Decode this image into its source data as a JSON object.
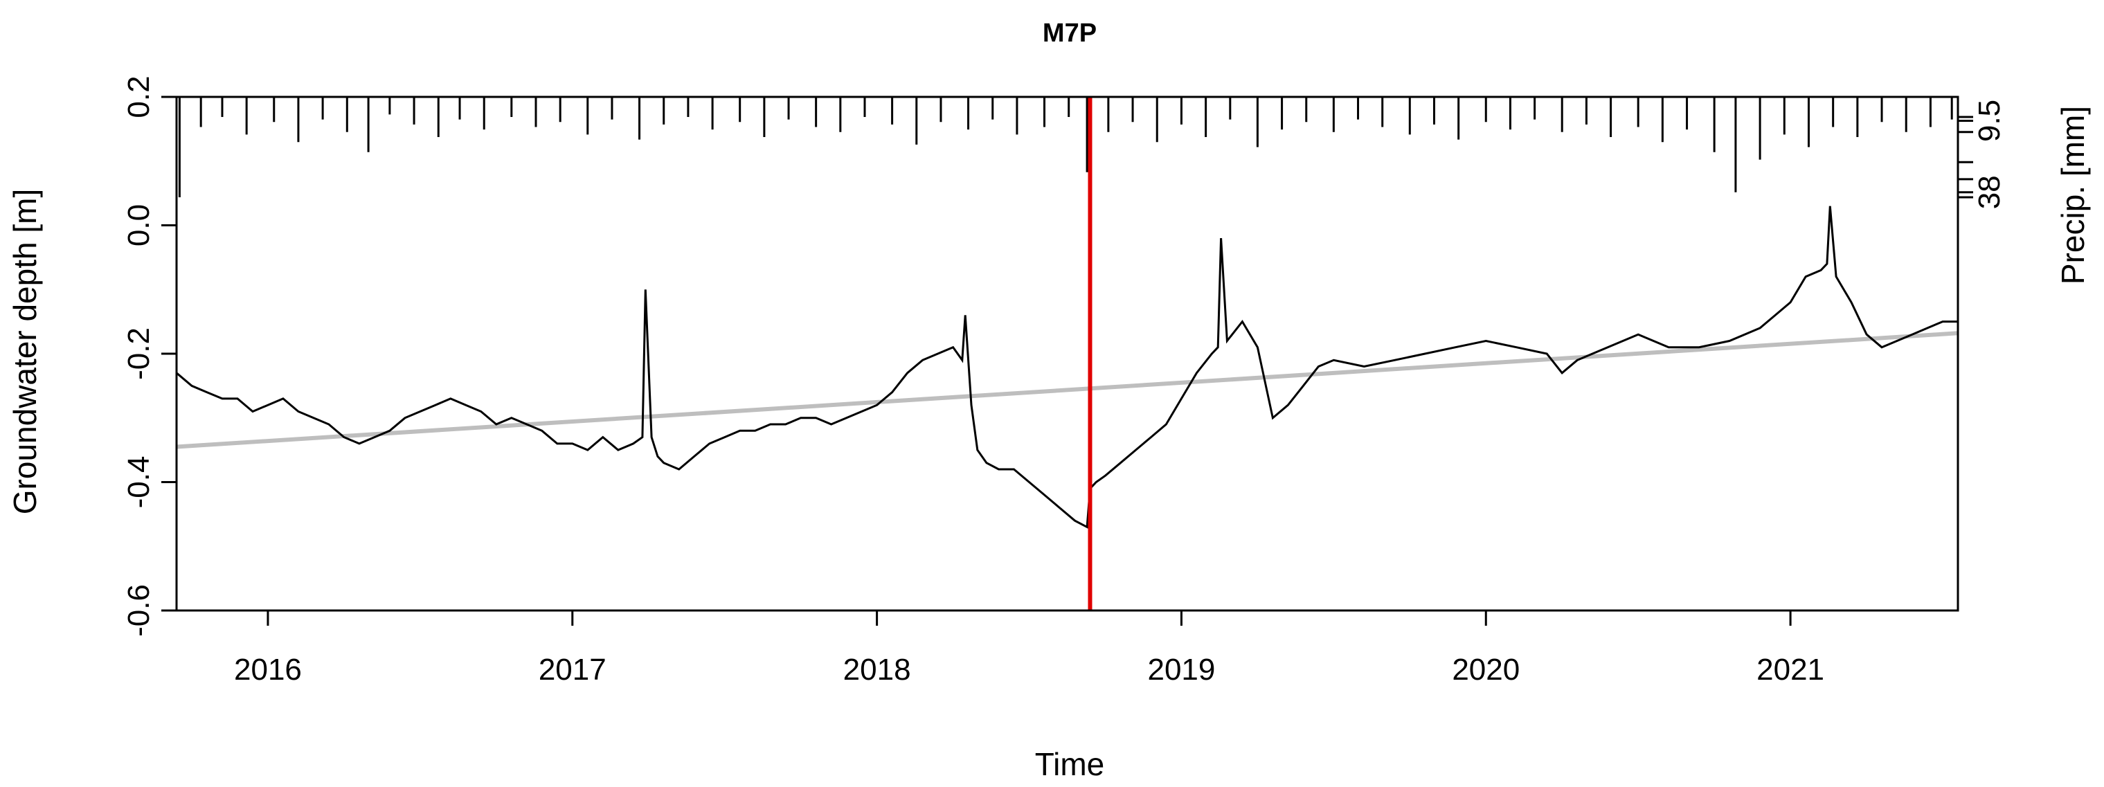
{
  "chart_data": {
    "type": "line",
    "title": "M7P",
    "xlabel": "Time",
    "ylabel": "Groundwater depth [m]",
    "ylabel_right": "Precip. [mm]",
    "xlim": [
      2015.7,
      2021.55
    ],
    "ylim": [
      -0.6,
      0.2
    ],
    "x_ticks": [
      "2016",
      "2017",
      "2018",
      "2019",
      "2020",
      "2021"
    ],
    "y_ticks": [
      "0.2",
      "0.0",
      "-0.2",
      "-0.4",
      "-0.6"
    ],
    "y2_ticks": [
      "9.5",
      "38"
    ],
    "grid": false,
    "legend": "none",
    "colors": {
      "groundwater": "#000000",
      "trend": "#bebebe",
      "marker": "#e00000",
      "precip": "#000000"
    },
    "vertical_marker_x": 2018.7,
    "series": [
      {
        "key": "groundwater",
        "x": [
          2015.7,
          2015.75,
          2015.8,
          2015.85,
          2015.9,
          2015.95,
          2016.0,
          2016.05,
          2016.1,
          2016.15,
          2016.2,
          2016.25,
          2016.3,
          2016.35,
          2016.4,
          2016.45,
          2016.5,
          2016.55,
          2016.6,
          2016.65,
          2016.7,
          2016.75,
          2016.8,
          2016.85,
          2016.9,
          2016.95,
          2017.0,
          2017.05,
          2017.1,
          2017.15,
          2017.2,
          2017.23,
          2017.24,
          2017.26,
          2017.28,
          2017.3,
          2017.35,
          2017.4,
          2017.45,
          2017.5,
          2017.55,
          2017.6,
          2017.65,
          2017.7,
          2017.75,
          2017.8,
          2017.85,
          2017.9,
          2017.95,
          2018.0,
          2018.05,
          2018.1,
          2018.15,
          2018.2,
          2018.25,
          2018.28,
          2018.29,
          2018.31,
          2018.33,
          2018.36,
          2018.4,
          2018.45,
          2018.5,
          2018.55,
          2018.6,
          2018.65,
          2018.69,
          2018.7,
          2018.72,
          2018.75,
          2018.8,
          2018.85,
          2018.9,
          2018.95,
          2019.0,
          2019.05,
          2019.1,
          2019.12,
          2019.13,
          2019.15,
          2019.2,
          2019.25,
          2019.3,
          2019.35,
          2019.4,
          2019.45,
          2019.5,
          2019.6,
          2019.7,
          2019.8,
          2019.9,
          2020.0,
          2020.1,
          2020.2,
          2020.25,
          2020.3,
          2020.4,
          2020.5,
          2020.6,
          2020.7,
          2020.8,
          2020.9,
          2020.95,
          2021.0,
          2021.05,
          2021.1,
          2021.12,
          2021.13,
          2021.15,
          2021.2,
          2021.25,
          2021.3,
          2021.35,
          2021.4,
          2021.45,
          2021.5,
          2021.55
        ],
        "values": [
          -0.23,
          -0.25,
          -0.26,
          -0.27,
          -0.27,
          -0.29,
          -0.28,
          -0.27,
          -0.29,
          -0.3,
          -0.31,
          -0.33,
          -0.34,
          -0.33,
          -0.32,
          -0.3,
          -0.29,
          -0.28,
          -0.27,
          -0.28,
          -0.29,
          -0.31,
          -0.3,
          -0.31,
          -0.32,
          -0.34,
          -0.34,
          -0.35,
          -0.33,
          -0.35,
          -0.34,
          -0.33,
          -0.1,
          -0.33,
          -0.36,
          -0.37,
          -0.38,
          -0.36,
          -0.34,
          -0.33,
          -0.32,
          -0.32,
          -0.31,
          -0.31,
          -0.3,
          -0.3,
          -0.31,
          -0.3,
          -0.29,
          -0.28,
          -0.26,
          -0.23,
          -0.21,
          -0.2,
          -0.19,
          -0.21,
          -0.14,
          -0.28,
          -0.35,
          -0.37,
          -0.38,
          -0.38,
          -0.4,
          -0.42,
          -0.44,
          -0.46,
          -0.47,
          -0.41,
          -0.4,
          -0.39,
          -0.37,
          -0.35,
          -0.33,
          -0.31,
          -0.27,
          -0.23,
          -0.2,
          -0.19,
          -0.02,
          -0.18,
          -0.15,
          -0.19,
          -0.3,
          -0.28,
          -0.25,
          -0.22,
          -0.21,
          -0.22,
          -0.21,
          -0.2,
          -0.19,
          -0.18,
          -0.19,
          -0.2,
          -0.23,
          -0.21,
          -0.19,
          -0.17,
          -0.19,
          -0.19,
          -0.18,
          -0.16,
          -0.14,
          -0.12,
          -0.08,
          -0.07,
          -0.06,
          0.03,
          -0.08,
          -0.12,
          -0.17,
          -0.19,
          -0.18,
          -0.17,
          -0.16,
          -0.15,
          -0.15
        ]
      },
      {
        "key": "trend",
        "x": [
          2015.7,
          2021.55
        ],
        "values": [
          -0.345,
          -0.168
        ]
      },
      {
        "key": "precip",
        "x": [
          2015.71,
          2015.78,
          2015.85,
          2015.93,
          2016.02,
          2016.1,
          2016.18,
          2016.26,
          2016.33,
          2016.4,
          2016.48,
          2016.56,
          2016.63,
          2016.71,
          2016.8,
          2016.88,
          2016.96,
          2017.05,
          2017.13,
          2017.22,
          2017.3,
          2017.38,
          2017.46,
          2017.55,
          2017.63,
          2017.71,
          2017.8,
          2017.88,
          2017.96,
          2018.05,
          2018.13,
          2018.21,
          2018.3,
          2018.38,
          2018.46,
          2018.55,
          2018.63,
          2018.69,
          2018.76,
          2018.84,
          2018.92,
          2019.0,
          2019.08,
          2019.16,
          2019.25,
          2019.33,
          2019.41,
          2019.5,
          2019.58,
          2019.66,
          2019.75,
          2019.83,
          2019.91,
          2020.0,
          2020.08,
          2020.16,
          2020.25,
          2020.33,
          2020.41,
          2020.5,
          2020.58,
          2020.66,
          2020.75,
          2020.82,
          2020.9,
          2020.98,
          2021.06,
          2021.14,
          2021.22,
          2021.3,
          2021.38,
          2021.46,
          2021.53
        ],
        "values": [
          40,
          12,
          8,
          15,
          10,
          18,
          9,
          14,
          22,
          7,
          11,
          16,
          9,
          13,
          8,
          12,
          10,
          15,
          9,
          17,
          11,
          8,
          13,
          10,
          16,
          9,
          12,
          14,
          8,
          11,
          19,
          10,
          13,
          9,
          15,
          12,
          8,
          30,
          14,
          10,
          18,
          11,
          16,
          9,
          20,
          13,
          10,
          14,
          9,
          12,
          15,
          11,
          17,
          10,
          13,
          9,
          14,
          11,
          16,
          12,
          18,
          13,
          22,
          38,
          25,
          15,
          20,
          12,
          16,
          10,
          14,
          12,
          9
        ]
      }
    ]
  }
}
